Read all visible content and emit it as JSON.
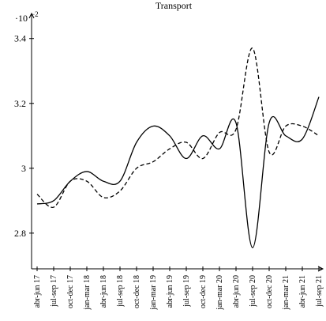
{
  "chart_data": {
    "type": "line",
    "title": "Transport",
    "y_scale_base": "·10",
    "y_scale_exp": "−2",
    "categories": [
      "abr-jun 17",
      "jul-sep 17",
      "oct-dec 17",
      "jan-mar 18",
      "abr-jun 18",
      "jul-sep 18",
      "oct-dec 18",
      "jan-mar 19",
      "abr-jun 19",
      "jul-sep 19",
      "oct-dec 19",
      "jan-mar 20",
      "abr-jun 20",
      "jul-sep 20",
      "oct-dec 20",
      "jan-mar 21",
      "abr-jun 21",
      "jul-sep 21"
    ],
    "series": [
      {
        "color": "#000000",
        "dash": "solid",
        "values": [
          2.89,
          2.9,
          2.96,
          2.99,
          2.96,
          2.96,
          3.08,
          3.13,
          3.1,
          3.03,
          3.1,
          3.06,
          3.14,
          2.755,
          3.14,
          3.1,
          3.09,
          3.22
        ]
      },
      {
        "color": "#000000",
        "dash": "dashed",
        "values": [
          2.92,
          2.88,
          2.96,
          2.96,
          2.91,
          2.93,
          3.0,
          3.02,
          3.06,
          3.08,
          3.03,
          3.11,
          3.12,
          3.37,
          3.05,
          3.13,
          3.13,
          3.1
        ]
      }
    ],
    "ylim": [
      2.69,
      3.47
    ],
    "yticks": [
      {
        "value": 2.8,
        "label": "2.8"
      },
      3,
      {
        "value": 3.2,
        "label": "3.2"
      },
      {
        "value": 3.4,
        "label": "3.4"
      }
    ]
  }
}
